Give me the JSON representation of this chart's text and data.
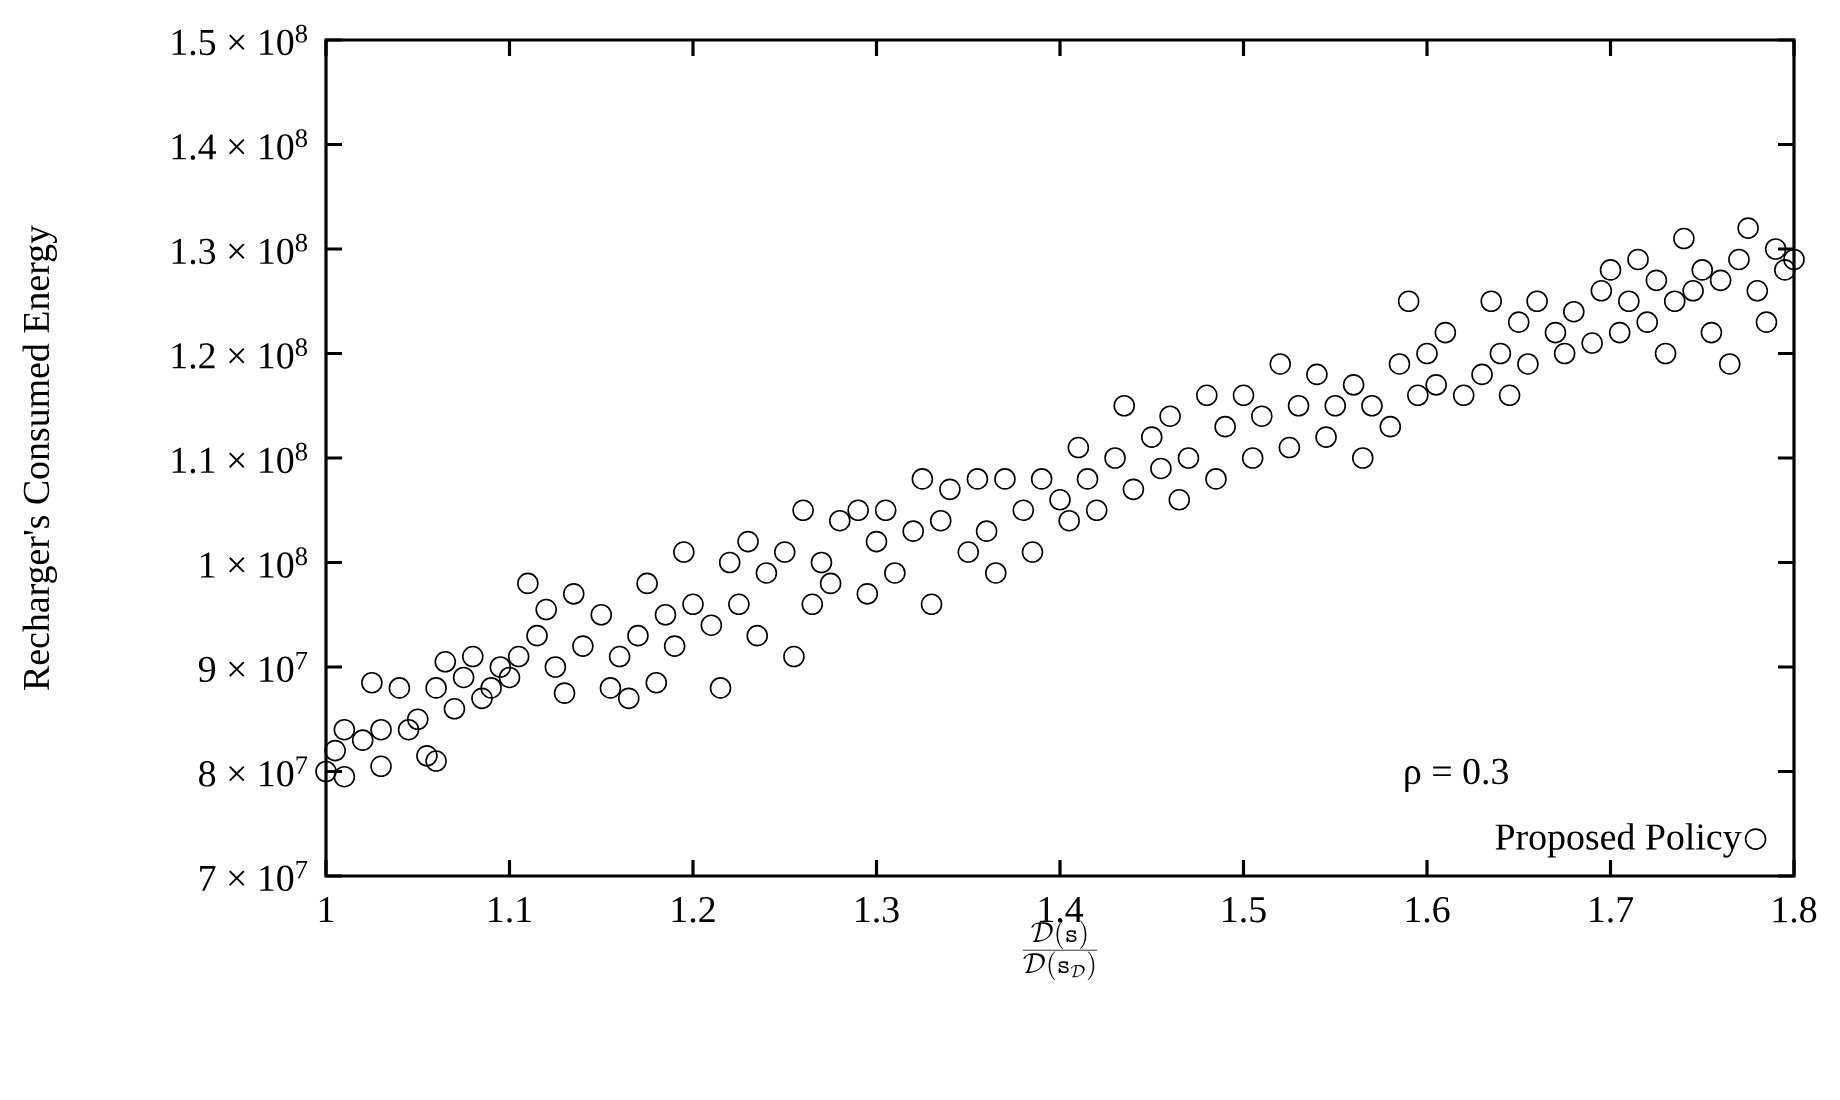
{
  "chart_data": {
    "type": "scatter",
    "xlabel": "\\frac{\\mathcal{D}(\\mathtt{s})}{\\mathcal{D}(\\mathtt{s}_{\\mathcal{D}})}",
    "ylabel": "Recharger's Consumed Energy",
    "annotations": [
      "ρ = 0.3"
    ],
    "xlim": [
      1,
      1.8
    ],
    "xticks": [
      1,
      1.1,
      1.2,
      1.3,
      1.4,
      1.5,
      1.6,
      1.7,
      1.8
    ],
    "ylim": [
      70000000.0,
      150000000.0
    ],
    "yticks": [
      {
        "value": 70000000.0,
        "label": "7 × 10$^{7}$"
      },
      {
        "value": 80000000.0,
        "label": "8 × 10$^{7}$"
      },
      {
        "value": 90000000.0,
        "label": "9 × 10$^{7}$"
      },
      {
        "value": 100000000.0,
        "label": "1 × 10$^{8}$"
      },
      {
        "value": 110000000.0,
        "label": "1.1 × 10$^{8}$"
      },
      {
        "value": 120000000.0,
        "label": "1.2 × 10$^{8}$"
      },
      {
        "value": 130000000.0,
        "label": "1.3 × 10$^{8}$"
      },
      {
        "value": 140000000.0,
        "label": "1.4 × 10$^{8}$"
      },
      {
        "value": 150000000.0,
        "label": "1.5 × 10$^{8}$"
      }
    ],
    "grid": false,
    "legend": "bottom right",
    "marker": "circle",
    "series": [
      {
        "name": "Proposed Policy",
        "color": "#000000",
        "x": [
          1.0,
          1.005,
          1.01,
          1.01,
          1.02,
          1.025,
          1.03,
          1.03,
          1.04,
          1.045,
          1.05,
          1.055,
          1.06,
          1.06,
          1.065,
          1.07,
          1.075,
          1.08,
          1.085,
          1.09,
          1.095,
          1.1,
          1.105,
          1.11,
          1.115,
          1.12,
          1.125,
          1.13,
          1.135,
          1.14,
          1.15,
          1.155,
          1.16,
          1.165,
          1.17,
          1.175,
          1.18,
          1.185,
          1.19,
          1.195,
          1.2,
          1.21,
          1.215,
          1.22,
          1.225,
          1.23,
          1.235,
          1.24,
          1.25,
          1.255,
          1.26,
          1.265,
          1.27,
          1.275,
          1.28,
          1.29,
          1.295,
          1.3,
          1.305,
          1.31,
          1.32,
          1.325,
          1.33,
          1.335,
          1.34,
          1.35,
          1.355,
          1.36,
          1.365,
          1.37,
          1.38,
          1.385,
          1.39,
          1.4,
          1.405,
          1.41,
          1.415,
          1.42,
          1.43,
          1.435,
          1.44,
          1.45,
          1.455,
          1.46,
          1.465,
          1.47,
          1.48,
          1.485,
          1.49,
          1.5,
          1.505,
          1.51,
          1.52,
          1.525,
          1.53,
          1.54,
          1.545,
          1.55,
          1.56,
          1.565,
          1.57,
          1.58,
          1.585,
          1.59,
          1.595,
          1.6,
          1.605,
          1.61,
          1.62,
          1.63,
          1.635,
          1.64,
          1.645,
          1.65,
          1.655,
          1.66,
          1.67,
          1.675,
          1.68,
          1.69,
          1.695,
          1.7,
          1.705,
          1.71,
          1.715,
          1.72,
          1.725,
          1.73,
          1.735,
          1.74,
          1.745,
          1.75,
          1.755,
          1.76,
          1.765,
          1.77,
          1.775,
          1.78,
          1.785,
          1.79,
          1.795,
          1.8
        ],
        "values": [
          80000000.0,
          82000000.0,
          84000000.0,
          79500000.0,
          83000000.0,
          88500000.0,
          84000000.0,
          80500000.0,
          88000000.0,
          84000000.0,
          85000000.0,
          81500000.0,
          88000000.0,
          81000000.0,
          90500000.0,
          86000000.0,
          89000000.0,
          91000000.0,
          87000000.0,
          88000000.0,
          90000000.0,
          89000000.0,
          91000000.0,
          98000000.0,
          93000000.0,
          95500000.0,
          90000000.0,
          87500000.0,
          97000000.0,
          92000000.0,
          95000000.0,
          88000000.0,
          91000000.0,
          87000000.0,
          93000000.0,
          98000000.0,
          88500000.0,
          95000000.0,
          92000000.0,
          101000000.0,
          96000000.0,
          94000000.0,
          88000000.0,
          100000000.0,
          96000000.0,
          102000000.0,
          93000000.0,
          99000000.0,
          101000000.0,
          91000000.0,
          105000000.0,
          96000000.0,
          100000000.0,
          98000000.0,
          104000000.0,
          105000000.0,
          97000000.0,
          102000000.0,
          105000000.0,
          99000000.0,
          103000000.0,
          108000000.0,
          96000000.0,
          104000000.0,
          107000000.0,
          101000000.0,
          108000000.0,
          103000000.0,
          99000000.0,
          108000000.0,
          105000000.0,
          101000000.0,
          108000000.0,
          106000000.0,
          104000000.0,
          111000000.0,
          108000000.0,
          105000000.0,
          110000000.0,
          115000000.0,
          107000000.0,
          112000000.0,
          109000000.0,
          114000000.0,
          106000000.0,
          110000000.0,
          116000000.0,
          108000000.0,
          113000000.0,
          116000000.0,
          110000000.0,
          114000000.0,
          119000000.0,
          111000000.0,
          115000000.0,
          118000000.0,
          112000000.0,
          115000000.0,
          117000000.0,
          110000000.0,
          115000000.0,
          113000000.0,
          119000000.0,
          125000000.0,
          116000000.0,
          120000000.0,
          117000000.0,
          122000000.0,
          116000000.0,
          118000000.0,
          125000000.0,
          120000000.0,
          116000000.0,
          123000000.0,
          119000000.0,
          125000000.0,
          122000000.0,
          120000000.0,
          124000000.0,
          121000000.0,
          126000000.0,
          128000000.0,
          122000000.0,
          125000000.0,
          129000000.0,
          123000000.0,
          127000000.0,
          120000000.0,
          125000000.0,
          131000000.0,
          126000000.0,
          128000000.0,
          122000000.0,
          127000000.0,
          119000000.0,
          129000000.0,
          132000000.0,
          126000000.0,
          123000000.0,
          130000000.0,
          128000000.0,
          129000000.0
        ]
      }
    ]
  }
}
